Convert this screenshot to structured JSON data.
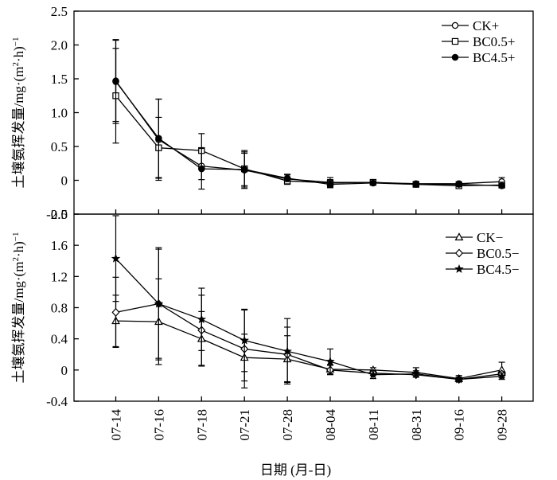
{
  "chart_data": [
    {
      "type": "line",
      "ylabel": "土壤氨挥发量/mg·(m²·h)⁻¹",
      "ylabel_main": "土壤氨挥发量/mg·(m",
      "ylabel_sup1": "2",
      "ylabel_mid": "·h)",
      "ylabel_sup2": "−1",
      "xlabel": "",
      "ylim": [
        -0.5,
        2.5
      ],
      "yticks": [
        "-0.5",
        "0",
        "0.5",
        "1.0",
        "1.5",
        "2.0",
        "2.5"
      ],
      "ytick_values": [
        -0.5,
        0,
        0.5,
        1.0,
        1.5,
        2.0,
        2.5
      ],
      "categories": [
        "07-14",
        "07-16",
        "07-18",
        "07-21",
        "07-28",
        "08-04",
        "08-11",
        "08-31",
        "09-16",
        "09-28"
      ],
      "legend_position": "top-right",
      "series": [
        {
          "name": "CK+",
          "marker": "circle-open",
          "values": [
            1.47,
            0.6,
            0.21,
            0.15,
            0.02,
            -0.03,
            -0.03,
            -0.05,
            -0.05,
            -0.02
          ],
          "errors": [
            0.6,
            0.6,
            0.2,
            0.25,
            0.07,
            0.07,
            0.03,
            0.03,
            0.03,
            0.06
          ]
        },
        {
          "name": "BC0.5+",
          "marker": "square-open",
          "values": [
            1.25,
            0.48,
            0.44,
            0.17,
            -0.01,
            -0.04,
            -0.03,
            -0.06,
            -0.08,
            -0.07
          ],
          "errors": [
            0.7,
            0.45,
            0.25,
            0.25,
            0.05,
            0.05,
            0.03,
            0.03,
            0.03,
            0.03
          ]
        },
        {
          "name": "BC4.5+",
          "marker": "circle-filled",
          "values": [
            1.46,
            0.62,
            0.17,
            0.16,
            0.03,
            -0.06,
            -0.04,
            -0.06,
            -0.06,
            -0.08
          ],
          "errors": [
            0.62,
            0.58,
            0.3,
            0.28,
            0.05,
            0.05,
            0.03,
            0.03,
            0.03,
            0.03
          ]
        }
      ]
    },
    {
      "type": "line",
      "ylabel": "土壤氨挥发量/mg·(m²·h)⁻¹",
      "ylabel_main": "土壤氨挥发量/mg·(m",
      "ylabel_sup1": "2",
      "ylabel_mid": "·h)",
      "ylabel_sup2": "−1",
      "xlabel": "日期 (月-日)",
      "ylim": [
        -0.4,
        2.0
      ],
      "yticks": [
        "-0.4",
        "0",
        "0.4",
        "0.8",
        "1.2",
        "1.6",
        "2.0"
      ],
      "ytick_values": [
        -0.4,
        0,
        0.4,
        0.8,
        1.2,
        1.6,
        2.0
      ],
      "categories": [
        "07-14",
        "07-16",
        "07-18",
        "07-21",
        "07-28",
        "08-04",
        "08-11",
        "08-31",
        "09-16",
        "09-28"
      ],
      "legend_position": "top-right",
      "series": [
        {
          "name": "CK−",
          "marker": "triangle-open",
          "values": [
            0.63,
            0.62,
            0.4,
            0.16,
            0.14,
            0.01,
            0.0,
            -0.03,
            -0.11,
            0.0
          ],
          "errors": [
            0.33,
            0.55,
            0.35,
            0.3,
            0.3,
            0.06,
            0.03,
            0.06,
            0.04,
            0.1
          ]
        },
        {
          "name": "BC0.5−",
          "marker": "diamond-open",
          "values": [
            0.74,
            0.85,
            0.51,
            0.27,
            0.2,
            0.0,
            -0.04,
            -0.06,
            -0.12,
            -0.05
          ],
          "errors": [
            0.45,
            0.7,
            0.45,
            0.5,
            0.35,
            0.06,
            0.03,
            0.03,
            0.03,
            0.03
          ]
        },
        {
          "name": "BC4.5−",
          "marker": "star-filled",
          "values": [
            1.43,
            0.85,
            0.65,
            0.38,
            0.24,
            0.11,
            -0.06,
            -0.05,
            -0.12,
            -0.08
          ],
          "errors": [
            0.55,
            0.72,
            0.4,
            0.4,
            0.42,
            0.16,
            0.05,
            0.04,
            0.03,
            0.04
          ]
        }
      ]
    }
  ]
}
